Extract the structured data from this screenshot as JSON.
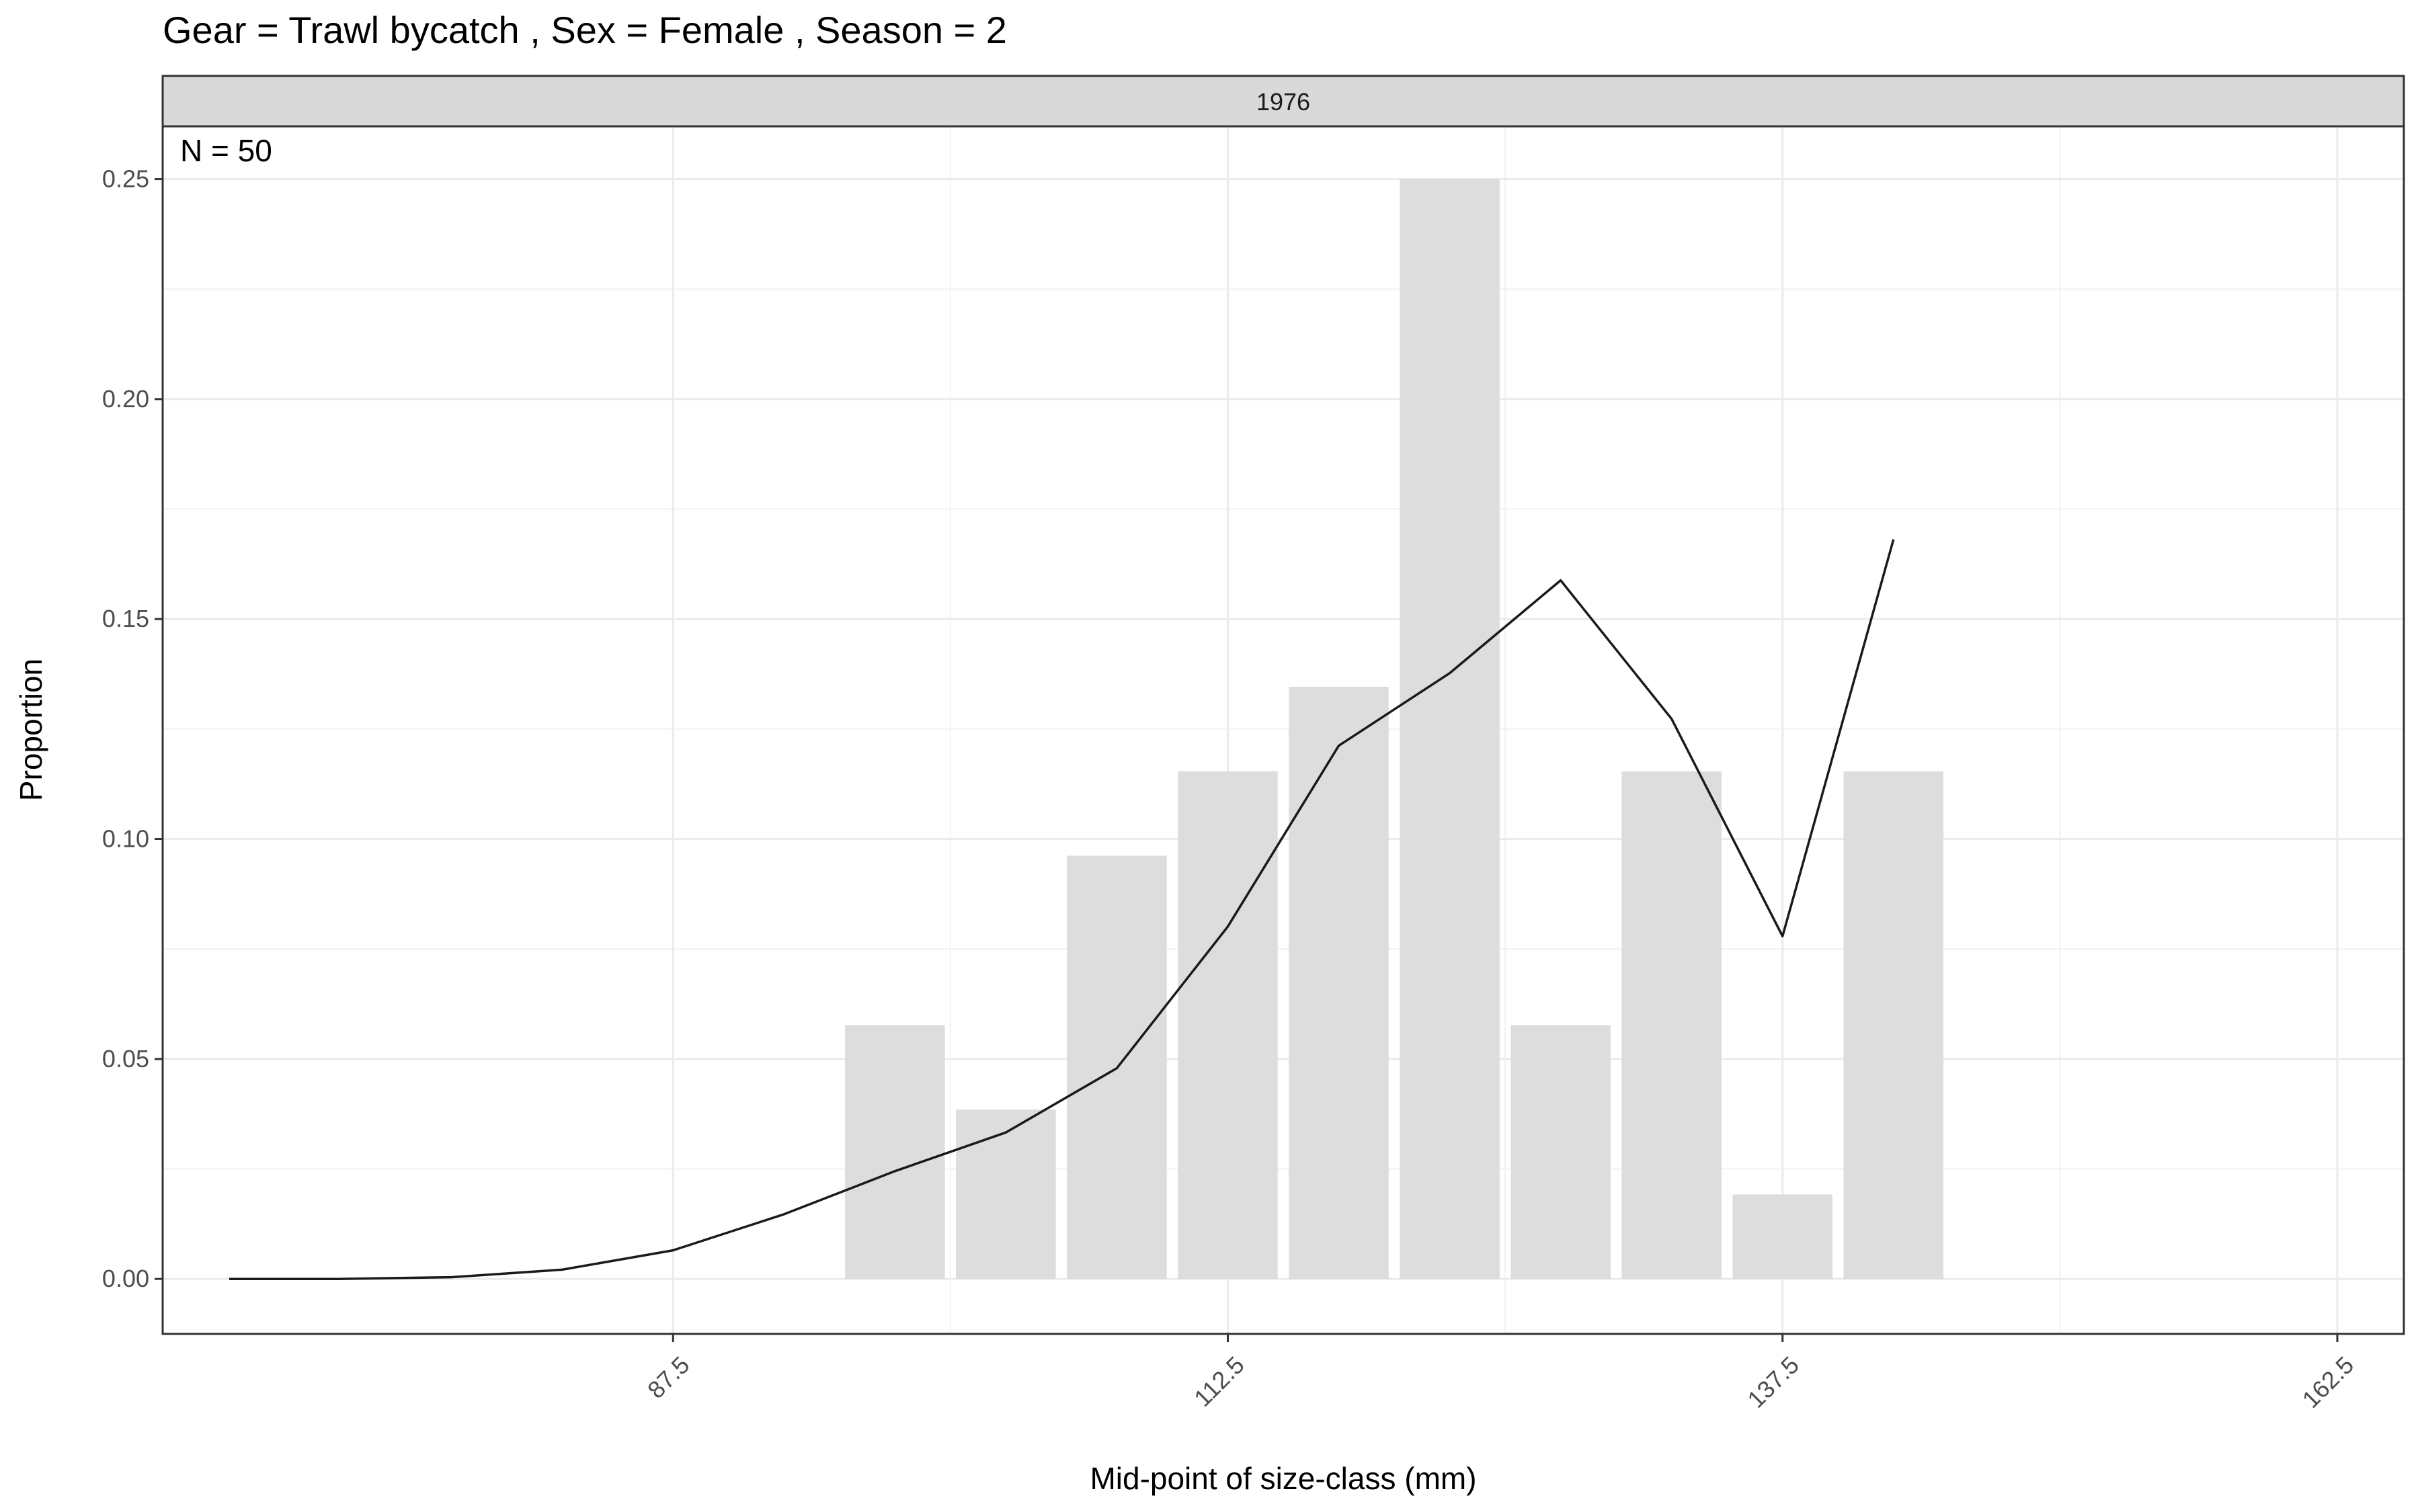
{
  "chart_data": {
    "type": "bar",
    "title": "Gear = Trawl bycatch , Sex = Female , Season = 2",
    "facet_label": "1976",
    "annotation": "N = 50",
    "xlabel": "Mid-point of size-class (mm)",
    "ylabel": "Proportion",
    "xlim": [
      64.5,
      165.5
    ],
    "ylim": [
      -0.0125,
      0.262
    ],
    "x_ticks": [
      87.5,
      112.5,
      137.5,
      162.5
    ],
    "x_tick_labels": [
      "87.5",
      "112.5",
      "137.5",
      "162.5"
    ],
    "y_ticks": [
      0.0,
      0.05,
      0.1,
      0.15,
      0.2,
      0.25
    ],
    "y_tick_labels": [
      "0.00",
      "0.05",
      "0.10",
      "0.15",
      "0.20",
      "0.25"
    ],
    "grid": true,
    "bar_width": 4.5,
    "series": [
      {
        "kind": "bar",
        "color": "#dddddd",
        "x": [
          97.5,
          102.5,
          107.5,
          112.5,
          117.5,
          122.5,
          127.5,
          132.5,
          137.5,
          142.5
        ],
        "values": [
          0.0577,
          0.0385,
          0.0962,
          0.1154,
          0.1346,
          0.25,
          0.0577,
          0.1154,
          0.0192,
          0.1154
        ]
      },
      {
        "kind": "line",
        "color": "#1a1a1a",
        "x": [
          67.5,
          72.5,
          77.5,
          82.5,
          87.5,
          92.5,
          97.5,
          102.5,
          107.5,
          112.5,
          117.5,
          122.5,
          127.5,
          132.5,
          137.5,
          142.5
        ],
        "values": [
          0.0,
          0.0,
          0.0004,
          0.0021,
          0.0065,
          0.0147,
          0.0245,
          0.0333,
          0.0479,
          0.0801,
          0.1212,
          0.1377,
          0.1588,
          0.1273,
          0.0779,
          0.1681
        ]
      }
    ]
  }
}
